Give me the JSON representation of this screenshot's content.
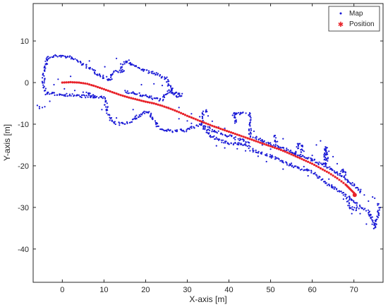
{
  "chart_data": {
    "type": "scatter",
    "title": "",
    "xlabel": "X-axis [m]",
    "ylabel": "Y-axis [m]",
    "xlim": [
      -7,
      77
    ],
    "ylim": [
      -48,
      19
    ],
    "xticks": [
      0,
      10,
      20,
      30,
      40,
      50,
      60,
      70
    ],
    "yticks": [
      10,
      0,
      -10,
      -20,
      -30,
      -40
    ],
    "grid": false,
    "legend_position": "top-right",
    "series": [
      {
        "name": "Map",
        "marker": "dot",
        "color": "#1a1ad6",
        "segments": [
          [
            [
              -3.5,
              6
            ],
            [
              -1,
              6.5
            ],
            [
              2,
              6
            ],
            [
              4,
              5
            ],
            [
              6,
              3.8
            ],
            [
              8,
              2.5
            ],
            [
              10,
              1.3
            ],
            [
              11.5,
              0.5
            ]
          ],
          [
            [
              -3.5,
              6
            ],
            [
              -4.2,
              4
            ],
            [
              -4.5,
              2
            ],
            [
              -4.5,
              0
            ],
            [
              -4.3,
              -1.5
            ],
            [
              -3.8,
              -2.6
            ]
          ],
          [
            [
              -3.8,
              -2.6
            ],
            [
              -1,
              -2.8
            ],
            [
              2,
              -3
            ],
            [
              5,
              -3.3
            ],
            [
              8,
              -3.5
            ],
            [
              10,
              -3.7
            ]
          ],
          [
            [
              10,
              -3.7
            ],
            [
              10.5,
              -5.5
            ],
            [
              11,
              -7.5
            ],
            [
              12,
              -9.5
            ],
            [
              14,
              -10
            ],
            [
              16,
              -9.5
            ],
            [
              18,
              -8.2
            ],
            [
              20,
              -7
            ],
            [
              21,
              -7.3
            ]
          ],
          [
            [
              11.5,
              0.5
            ],
            [
              12,
              2
            ],
            [
              13,
              2.8
            ],
            [
              14.5,
              2.5
            ]
          ],
          [
            [
              14.5,
              2.5
            ],
            [
              14,
              4
            ],
            [
              15,
              5
            ],
            [
              17,
              4.3
            ],
            [
              19,
              3.3
            ],
            [
              21,
              2.5
            ],
            [
              23,
              1.8
            ],
            [
              25,
              1
            ]
          ],
          [
            [
              25,
              1
            ],
            [
              25.5,
              -0.5
            ],
            [
              26,
              -1.5
            ],
            [
              27,
              -3
            ],
            [
              28,
              -3.6
            ]
          ],
          [
            [
              15,
              -2
            ],
            [
              18,
              -2.8
            ],
            [
              21,
              -3.5
            ],
            [
              24,
              -4.2
            ]
          ],
          [
            [
              24,
              -4.2
            ],
            [
              25,
              -2.6
            ],
            [
              26,
              -1.7
            ],
            [
              26.5,
              -1
            ]
          ],
          [
            [
              21,
              -7.3
            ],
            [
              22,
              -9
            ],
            [
              23,
              -10.7
            ],
            [
              24.5,
              -11.5
            ],
            [
              27,
              -11.7
            ],
            [
              30,
              -11.4
            ],
            [
              32,
              -10.5
            ],
            [
              33.5,
              -10
            ]
          ],
          [
            [
              33.5,
              -10
            ],
            [
              33.5,
              -8
            ],
            [
              34,
              -7
            ],
            [
              35,
              -6.6
            ]
          ],
          [
            [
              33.5,
              -10
            ],
            [
              36,
              -11.5
            ],
            [
              39,
              -12.5
            ],
            [
              42,
              -13.5
            ],
            [
              45,
              -14.5
            ]
          ],
          [
            [
              34,
              -11
            ],
            [
              36,
              -13
            ],
            [
              38,
              -14
            ],
            [
              40,
              -14.5
            ],
            [
              43,
              -14.8
            ],
            [
              45,
              -15.5
            ]
          ],
          [
            [
              45,
              -7
            ],
            [
              45,
              -9
            ],
            [
              45,
              -11
            ],
            [
              45.3,
              -13.3
            ]
          ],
          [
            [
              41,
              -7.6
            ],
            [
              42.5,
              -7.3
            ],
            [
              44,
              -7.3
            ]
          ],
          [
            [
              41,
              -7.6
            ],
            [
              41.5,
              -8
            ],
            [
              41.7,
              -9
            ],
            [
              41.5,
              -10
            ]
          ],
          [
            [
              45,
              -16
            ],
            [
              48,
              -17
            ],
            [
              51,
              -18
            ],
            [
              54,
              -19.5
            ],
            [
              57,
              -20.6
            ],
            [
              60,
              -21.5
            ],
            [
              62,
              -23
            ],
            [
              64,
              -24.5
            ],
            [
              66,
              -25.8
            ],
            [
              68,
              -27
            ],
            [
              70,
              -28.5
            ],
            [
              71,
              -29.5
            ]
          ],
          [
            [
              46,
              -13
            ],
            [
              49,
              -14.3
            ],
            [
              52,
              -15.5
            ],
            [
              55,
              -16.7
            ],
            [
              58,
              -17.8
            ],
            [
              61,
              -19
            ],
            [
              63,
              -20
            ],
            [
              65,
              -21
            ],
            [
              67,
              -22.5
            ],
            [
              69,
              -24
            ],
            [
              71,
              -25.5
            ],
            [
              72,
              -26.5
            ]
          ],
          [
            [
              56,
              -17.5
            ],
            [
              56.5,
              -15.5
            ],
            [
              57,
              -14.5
            ],
            [
              57.5,
              -15
            ],
            [
              57.5,
              -17
            ]
          ],
          [
            [
              51,
              -12.5
            ],
            [
              51,
              -13.8
            ],
            [
              51.5,
              -14.5
            ]
          ],
          [
            [
              63,
              -20
            ],
            [
              63.2,
              -17
            ],
            [
              63.3,
              -15.5
            ],
            [
              63.5,
              -19
            ]
          ],
          [
            [
              67,
              -22
            ],
            [
              67.5,
              -21
            ],
            [
              68,
              -22.5
            ]
          ],
          [
            [
              68.5,
              -28
            ],
            [
              69,
              -30
            ],
            [
              70.5,
              -30.5
            ],
            [
              71.5,
              -29.5
            ]
          ],
          [
            [
              72,
              -30
            ],
            [
              73.5,
              -31
            ],
            [
              74.5,
              -33
            ],
            [
              75,
              -35
            ],
            [
              75.5,
              -33
            ],
            [
              76,
              -31
            ],
            [
              76,
              -29
            ]
          ],
          [
            [
              6,
              -2.3
            ],
            [
              7,
              -3
            ],
            [
              8,
              -3.2
            ]
          ],
          [
            [
              26,
              -2.5
            ],
            [
              27.5,
              -2.6
            ],
            [
              28.5,
              -2.8
            ],
            [
              28.5,
              -3.6
            ]
          ]
        ],
        "scattered": [
          [
            -6,
            -5.5
          ],
          [
            -5.5,
            -5.8
          ],
          [
            -4.8,
            -6
          ],
          [
            -3,
            -4.5
          ],
          [
            -2,
            -0.5
          ],
          [
            6.5,
            5.2
          ],
          [
            10.2,
            3.8
          ],
          [
            13,
            5.8
          ],
          [
            16,
            5.4
          ],
          [
            19,
            -0.5
          ],
          [
            22,
            -0.3
          ],
          [
            24,
            -0.7
          ],
          [
            28,
            -6
          ],
          [
            31,
            -7.5
          ],
          [
            33,
            -8.2
          ],
          [
            36,
            -9.3
          ],
          [
            37,
            -15.2
          ],
          [
            39,
            -15.7
          ],
          [
            42,
            -15.9
          ],
          [
            44,
            -16.4
          ],
          [
            47,
            -17.7
          ],
          [
            49,
            -19
          ],
          [
            53,
            -20.8
          ],
          [
            55,
            -19.4
          ],
          [
            59,
            -22.4
          ],
          [
            46,
            -11.7
          ],
          [
            53,
            -13.5
          ],
          [
            58,
            -16.5
          ],
          [
            60,
            -17.5
          ],
          [
            61,
            -15
          ],
          [
            62,
            -14
          ],
          [
            64,
            -16.5
          ],
          [
            65,
            -17.8
          ],
          [
            66,
            -21.5
          ],
          [
            68.5,
            -23.5
          ],
          [
            70,
            -24.8
          ],
          [
            67.5,
            -28
          ],
          [
            69.5,
            -31.5
          ],
          [
            73,
            -34
          ],
          [
            71.5,
            -31.5
          ],
          [
            73.5,
            -28.5
          ],
          [
            74.5,
            -27.5
          ],
          [
            72.5,
            -27
          ],
          [
            0.5,
            -1.5
          ],
          [
            3,
            -1.9
          ],
          [
            5,
            -2.3
          ],
          [
            -1,
            0.8
          ],
          [
            2,
            1.5
          ],
          [
            9.5,
            -6.5
          ],
          [
            13,
            -8.5
          ],
          [
            17,
            -6.5
          ],
          [
            30,
            -9.2
          ],
          [
            39,
            -11
          ],
          [
            58,
            -20.2
          ],
          [
            64,
            -23.2
          ],
          [
            50,
            -16
          ],
          [
            75,
            -27.8
          ],
          [
            76,
            -31.5
          ],
          [
            21.5,
            -5
          ],
          [
            25.5,
            -6
          ],
          [
            28,
            -8.7
          ],
          [
            31,
            -9.8
          ],
          [
            35,
            -8
          ],
          [
            37.5,
            -10.7
          ],
          [
            48,
            -15
          ],
          [
            60,
            -18.4
          ],
          [
            66,
            -19.5
          ],
          [
            70,
            -27
          ],
          [
            74,
            -32.5
          ],
          [
            -5.5,
            -6.2
          ],
          [
            -4.2,
            -5.8
          ]
        ]
      },
      {
        "name": "Position",
        "marker": "star",
        "color": "#e8232a",
        "points": [
          [
            0,
            0
          ],
          [
            2,
            0.1
          ],
          [
            4,
            0
          ],
          [
            6,
            -0.3
          ],
          [
            8,
            -0.9
          ],
          [
            10,
            -1.6
          ],
          [
            12,
            -2.3
          ],
          [
            14,
            -3
          ],
          [
            16,
            -3.6
          ],
          [
            18,
            -4.1
          ],
          [
            20,
            -4.6
          ],
          [
            22,
            -5
          ],
          [
            24,
            -5.6
          ],
          [
            26,
            -6.3
          ],
          [
            28,
            -7.1
          ],
          [
            30,
            -8
          ],
          [
            32,
            -8.8
          ],
          [
            34,
            -9.6
          ],
          [
            36,
            -10.4
          ],
          [
            38,
            -11.1
          ],
          [
            40,
            -11.8
          ],
          [
            42,
            -12.5
          ],
          [
            44,
            -13.2
          ],
          [
            46,
            -13.9
          ],
          [
            48,
            -14.6
          ],
          [
            50,
            -15.3
          ],
          [
            52,
            -16
          ],
          [
            54,
            -16.8
          ],
          [
            56,
            -17.7
          ],
          [
            58,
            -18.6
          ],
          [
            60,
            -19.5
          ],
          [
            62,
            -20.6
          ],
          [
            64,
            -21.7
          ],
          [
            66,
            -23
          ],
          [
            68,
            -24.5
          ],
          [
            69,
            -25.5
          ],
          [
            70,
            -26.5
          ],
          [
            70.2,
            -27
          ]
        ]
      }
    ]
  }
}
